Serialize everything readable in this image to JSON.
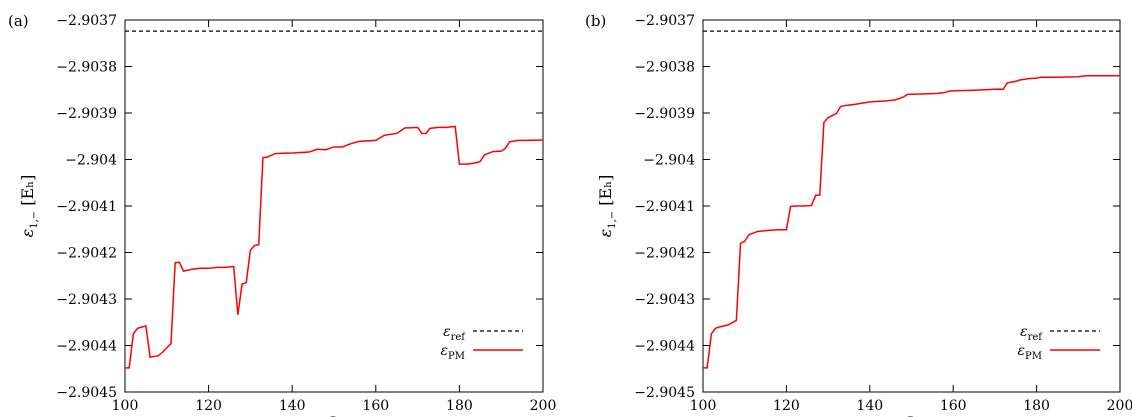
{
  "chart_data": [
    {
      "type": "line",
      "panel_label": "(a)",
      "xlabel": "L",
      "ylabel": "ε1,− [Eh]",
      "xlim": [
        100,
        200
      ],
      "ylim": [
        -2.9045,
        -2.9037
      ],
      "xticks": [
        "100",
        "120",
        "140",
        "160",
        "180",
        "200"
      ],
      "yticks": [
        "−2.9037",
        "−2.9038",
        "−2.9039",
        "−2.904",
        "−2.9041",
        "−2.9042",
        "−2.9043",
        "−2.9044",
        "−2.9045"
      ],
      "legend_position": "bottom-right",
      "series": [
        {
          "name": "εref",
          "style": "dashed",
          "color": "#000000",
          "x": [
            100,
            200
          ],
          "y": [
            -2.903724,
            -2.903724
          ]
        },
        {
          "name": "εPM",
          "style": "solid",
          "color": "#ff0000",
          "x": [
            100,
            101,
            102,
            103,
            105,
            106,
            108,
            109,
            111,
            112,
            113,
            114,
            116,
            118,
            120,
            122,
            124,
            126,
            127,
            128,
            129,
            130,
            131,
            132,
            133,
            134,
            136,
            140,
            144,
            146,
            148,
            150,
            152,
            154,
            156,
            158,
            160,
            162,
            165,
            167,
            168,
            170,
            171,
            172,
            173,
            175,
            177,
            179,
            180,
            182,
            184,
            185,
            186,
            188,
            190,
            191,
            192,
            194,
            196,
            200
          ],
          "y": [
            -2.904448,
            -2.904448,
            -2.904375,
            -2.904363,
            -2.904358,
            -2.904425,
            -2.904422,
            -2.904414,
            -2.904396,
            -2.904222,
            -2.904221,
            -2.90424,
            -2.904236,
            -2.904234,
            -2.904234,
            -2.904232,
            -2.904232,
            -2.90423,
            -2.904334,
            -2.904268,
            -2.904265,
            -2.904195,
            -2.904185,
            -2.904183,
            -2.903996,
            -2.903995,
            -2.903987,
            -2.903986,
            -2.903984,
            -2.903978,
            -2.903979,
            -2.903973,
            -2.903973,
            -2.903966,
            -2.903961,
            -2.90396,
            -2.903959,
            -2.903948,
            -2.903944,
            -2.903932,
            -2.903932,
            -2.903931,
            -2.903944,
            -2.903944,
            -2.903933,
            -2.903931,
            -2.903931,
            -2.903929,
            -2.90401,
            -2.90401,
            -2.904007,
            -2.904004,
            -2.90399,
            -2.903983,
            -2.903982,
            -2.903976,
            -2.903962,
            -2.903959,
            -2.903959,
            -2.903958
          ]
        }
      ]
    },
    {
      "type": "line",
      "panel_label": "(b)",
      "xlabel": "L",
      "ylabel": "ε1,− [Eh]",
      "xlim": [
        100,
        200
      ],
      "ylim": [
        -2.9045,
        -2.9037
      ],
      "xticks": [
        "100",
        "120",
        "140",
        "160",
        "180",
        "200"
      ],
      "yticks": [
        "−2.9037",
        "−2.9038",
        "−2.9039",
        "−2.904",
        "−2.9041",
        "−2.9042",
        "−2.9043",
        "−2.9044",
        "−2.9045"
      ],
      "legend_position": "bottom-right",
      "series": [
        {
          "name": "εref",
          "style": "dashed",
          "color": "#000000",
          "x": [
            100,
            200
          ],
          "y": [
            -2.903724,
            -2.903724
          ]
        },
        {
          "name": "εPM",
          "style": "solid",
          "color": "#ff0000",
          "x": [
            100,
            101,
            102,
            103,
            104,
            106,
            108,
            109,
            110,
            111,
            113,
            115,
            118,
            120,
            121,
            122,
            124,
            126,
            127,
            128,
            129,
            130,
            132,
            133,
            134,
            136,
            138,
            140,
            142,
            144,
            146,
            148,
            149,
            152,
            156,
            158,
            159,
            161,
            165,
            170,
            172,
            173,
            175,
            176,
            178,
            180,
            181,
            185,
            190,
            192,
            200
          ],
          "y": [
            -2.904448,
            -2.904448,
            -2.904375,
            -2.904363,
            -2.90436,
            -2.904356,
            -2.904346,
            -2.90418,
            -2.904176,
            -2.904162,
            -2.904155,
            -2.904153,
            -2.904151,
            -2.904151,
            -2.904101,
            -2.9041,
            -2.9041,
            -2.904099,
            -2.904077,
            -2.904077,
            -2.90392,
            -2.90391,
            -2.903901,
            -2.903886,
            -2.903884,
            -2.903882,
            -2.903879,
            -2.903876,
            -2.903875,
            -2.903874,
            -2.903872,
            -2.903866,
            -2.90386,
            -2.903859,
            -2.903858,
            -2.903856,
            -2.903853,
            -2.903852,
            -2.903851,
            -2.903849,
            -2.903849,
            -2.903835,
            -2.903832,
            -2.903829,
            -2.903826,
            -2.903825,
            -2.903823,
            -2.903823,
            -2.903822,
            -2.90382,
            -2.90382
          ]
        }
      ]
    }
  ]
}
